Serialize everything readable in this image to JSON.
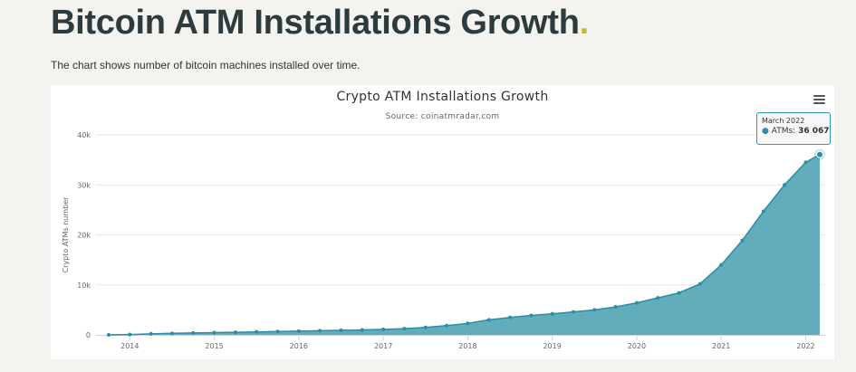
{
  "header": {
    "title": "Bitcoin ATM Installations Growth",
    "title_dot": ".",
    "subtitle": "The chart shows number of bitcoin machines installed over time."
  },
  "tooltip": {
    "date": "March 2022",
    "series": "ATMs",
    "value": "36 067"
  },
  "colors": {
    "area_fill": "#5aa9b7",
    "line": "#2a8ea6",
    "marker": "#2a8ea6"
  },
  "chart_data": {
    "type": "area",
    "title": "Crypto ATM Installations Growth",
    "subtitle": "Source: coinatmradar.com",
    "ylabel": "Crypto ATMs number",
    "xlabel": "",
    "xlim": [
      "2013-10",
      "2022-03"
    ],
    "ylim": [
      0,
      40000
    ],
    "y_ticks": [
      0,
      10000,
      20000,
      30000,
      40000
    ],
    "y_tick_labels": [
      "0",
      "10k",
      "20k",
      "30k",
      "40k"
    ],
    "x_ticks": [
      "2014-01",
      "2015-01",
      "2016-01",
      "2017-01",
      "2018-01",
      "2019-01",
      "2020-01",
      "2021-01",
      "2022-01"
    ],
    "x_tick_labels": [
      "2014",
      "2015",
      "2016",
      "2017",
      "2018",
      "2019",
      "2020",
      "2021",
      "2022"
    ],
    "grid": true,
    "legend": "none",
    "series": [
      {
        "name": "ATMs",
        "x": [
          "2013-10",
          "2014-01",
          "2014-04",
          "2014-07",
          "2014-10",
          "2015-01",
          "2015-04",
          "2015-07",
          "2015-10",
          "2016-01",
          "2016-04",
          "2016-07",
          "2016-10",
          "2017-01",
          "2017-04",
          "2017-07",
          "2017-10",
          "2018-01",
          "2018-04",
          "2018-07",
          "2018-10",
          "2019-01",
          "2019-04",
          "2019-07",
          "2019-10",
          "2020-01",
          "2020-04",
          "2020-07",
          "2020-10",
          "2021-01",
          "2021-04",
          "2021-07",
          "2021-10",
          "2022-01",
          "2022-03"
        ],
        "values": [
          5,
          80,
          200,
          300,
          380,
          450,
          530,
          600,
          680,
          750,
          830,
          920,
          1000,
          1100,
          1250,
          1500,
          1850,
          2300,
          3000,
          3500,
          3900,
          4200,
          4600,
          5000,
          5600,
          6400,
          7400,
          8400,
          10200,
          14000,
          18900,
          24700,
          30000,
          34500,
          36067
        ]
      }
    ]
  }
}
